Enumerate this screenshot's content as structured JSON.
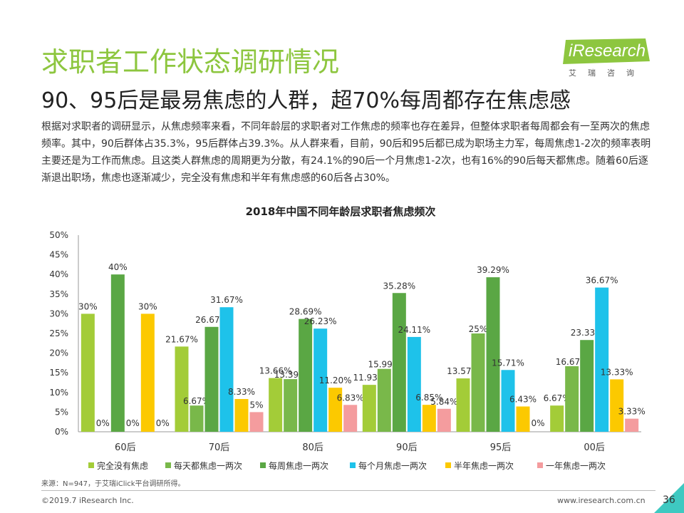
{
  "header": {
    "title": "求职者工作状态调研情况",
    "subtitle": "90、95后是最易焦虑的人群，超70%每周都存在焦虑感"
  },
  "logo": {
    "name": "iResearch",
    "sub": "艾瑞咨询",
    "color": "#8dc63f"
  },
  "body_text": "根据对求职者的调研显示，从焦虑频率来看，不同年龄层的求职者对工作焦虑的频率也存在差异，但整体求职者每周都会有一至两次的焦虑频率。其中，90后群体占35.3%，95后群体占39.3%。从人群来看，目前，90后和95后都已成为职场主力军，每周焦虑1-2次的频率表明主要还是为工作而焦虑。且这类人群焦虑的周期更为分散，有24.1%的90后一个月焦虑1-2次，也有16%的90后每天都焦虑。随着60后逐渐退出职场，焦虑也逐渐减少，完全没有焦虑和半年有焦虑感的60后各占30%。",
  "chart_data": {
    "type": "bar",
    "title": "2018年中国不同年龄层求职者焦虑频次",
    "categories": [
      "60后",
      "70后",
      "80后",
      "90后",
      "95后",
      "00后"
    ],
    "ylim": [
      0,
      50
    ],
    "yticks": [
      "0%",
      "5%",
      "10%",
      "15%",
      "20%",
      "25%",
      "30%",
      "35%",
      "40%",
      "45%",
      "50%"
    ],
    "ytick_values": [
      0,
      5,
      10,
      15,
      20,
      25,
      30,
      35,
      40,
      45,
      50
    ],
    "legend_position": "bottom",
    "series": [
      {
        "name": "完全没有焦虑",
        "color": "#a3cc38",
        "values": [
          30,
          21.67,
          13.66,
          11.93,
          13.57,
          6.67
        ],
        "labels": [
          "30%",
          "21.67%",
          "13.66%",
          "11.93%",
          "13.57%",
          "6.67%"
        ]
      },
      {
        "name": "每天都焦虑一两次",
        "color": "#79b84a",
        "values": [
          0,
          6.67,
          13.39,
          15.99,
          25,
          16.67
        ],
        "labels": [
          "0%",
          "6.67%",
          "13.39%",
          "15.99%",
          "25%",
          "16.67%"
        ]
      },
      {
        "name": "每周焦虑一两次",
        "color": "#5aa744",
        "values": [
          40,
          26.67,
          28.69,
          35.28,
          39.29,
          23.33
        ],
        "labels": [
          "40%",
          "26.67%",
          "28.69%",
          "35.28%",
          "39.29%",
          "23.33%"
        ]
      },
      {
        "name": "每个月焦虑一两次",
        "color": "#1ec2ea",
        "values": [
          0,
          31.67,
          26.23,
          24.11,
          15.71,
          36.67
        ],
        "labels": [
          "0%",
          "31.67%",
          "26.23%",
          "24.11%",
          "15.71%",
          "36.67%"
        ]
      },
      {
        "name": "半年焦虑一两次",
        "color": "#fcc900",
        "values": [
          30,
          8.33,
          11.2,
          6.85,
          6.43,
          13.33
        ],
        "labels": [
          "30%",
          "8.33%",
          "11.20%",
          "6.85%",
          "6.43%",
          "13.33%"
        ]
      },
      {
        "name": "一年焦虑一两次",
        "color": "#f49c9e",
        "values": [
          0,
          5,
          6.83,
          5.84,
          0,
          3.33
        ],
        "labels": [
          "0%",
          "5%",
          "6.83%",
          "5.84%",
          "0%",
          "3.33%"
        ]
      }
    ]
  },
  "source": "来源：N=947，于艾瑞iClick平台调研所得。",
  "footer": {
    "copyright": "©2019.7 iResearch Inc.",
    "website": "www.iresearch.com.cn",
    "page": "36"
  }
}
